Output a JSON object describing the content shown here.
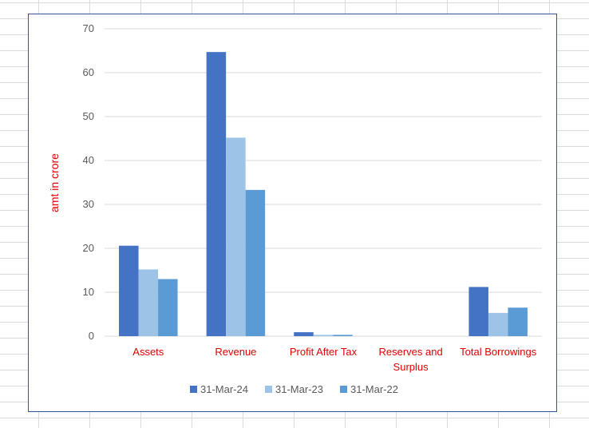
{
  "chart_data": {
    "type": "bar",
    "categories": [
      [
        "Assets"
      ],
      [
        "Revenue"
      ],
      [
        "Profit After Tax"
      ],
      [
        "Reserves and",
        "Surplus"
      ],
      [
        "Total Borrowings"
      ]
    ],
    "series": [
      {
        "name": "31-Mar-24",
        "color": "#4472c4",
        "values": [
          20.6,
          64.7,
          0.9,
          0,
          11.2
        ]
      },
      {
        "name": "31-Mar-23",
        "color": "#9dc3e6",
        "values": [
          15.2,
          45.2,
          0.3,
          0,
          5.3
        ]
      },
      {
        "name": "31-Mar-22",
        "color": "#5b9bd5",
        "values": [
          13.0,
          33.3,
          0.3,
          0,
          6.5
        ]
      }
    ],
    "ylabel": "amt in crore",
    "xlabel": "",
    "ylim": [
      0,
      70
    ],
    "yticks": [
      0,
      10,
      20,
      30,
      40,
      50,
      60,
      70
    ],
    "grid": true,
    "legend_position": "bottom"
  }
}
